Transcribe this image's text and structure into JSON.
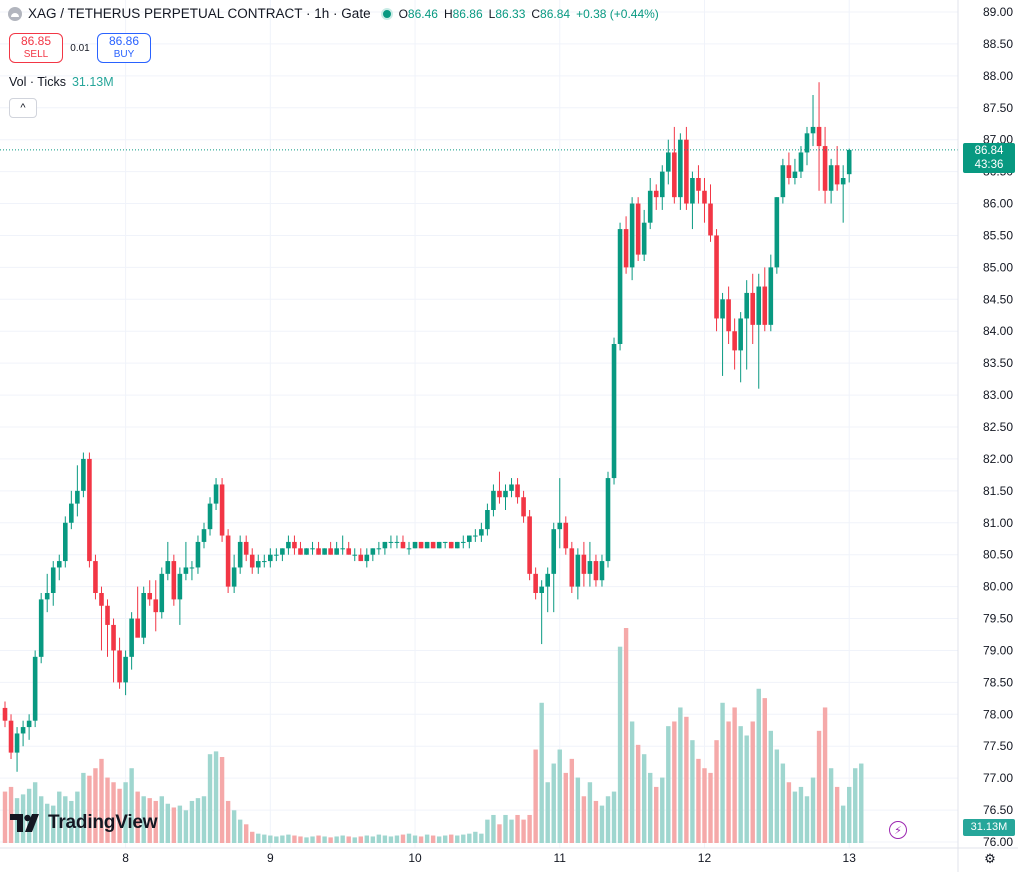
{
  "legend": {
    "symbol": "XAG / TETHERUS PERPETUAL CONTRACT · 1h · Gate",
    "o_label": "O",
    "o": "86.46",
    "h_label": "H",
    "h": "86.86",
    "l_label": "L",
    "l": "86.33",
    "c_label": "C",
    "c": "86.84",
    "change": "+0.38 (+0.44%)"
  },
  "trade": {
    "sell_price": "86.85",
    "sell_label": "SELL",
    "spread": "0.01",
    "buy_price": "86.86",
    "buy_label": "BUY"
  },
  "volume": {
    "label": "Vol · Ticks",
    "value": "31.13M"
  },
  "collapse_glyph": "^",
  "brand": {
    "name": "TradingView"
  },
  "price_tag": {
    "price": "86.84",
    "countdown": "43:36"
  },
  "volume_tag": "31.13M",
  "colors": {
    "up": "#089981",
    "down": "#f23645",
    "vol_up": "#9fd6cf",
    "vol_down": "#f5a9a9"
  },
  "chart_data": {
    "type": "candlestick",
    "interval": "1h",
    "y_ticks": [
      "89.00",
      "88.50",
      "88.00",
      "87.50",
      "87.00",
      "86.50",
      "86.00",
      "85.50",
      "85.00",
      "84.50",
      "84.00",
      "83.50",
      "83.00",
      "82.50",
      "82.00",
      "81.50",
      "81.00",
      "80.50",
      "80.00",
      "79.50",
      "79.00",
      "78.50",
      "78.00",
      "77.50",
      "77.00",
      "76.50",
      "76.00"
    ],
    "ylim": [
      76.0,
      89.0
    ],
    "x_ticks": [
      {
        "label": "8",
        "index": 20
      },
      {
        "label": "9",
        "index": 44
      },
      {
        "label": "10",
        "index": 68
      },
      {
        "label": "11",
        "index": 92
      },
      {
        "label": "12",
        "index": 116
      },
      {
        "label": "13",
        "index": 140
      }
    ],
    "current_price": 86.84,
    "ohlc": [
      [
        78.1,
        78.2,
        77.8,
        77.9
      ],
      [
        77.9,
        78.0,
        77.3,
        77.4
      ],
      [
        77.4,
        77.8,
        77.1,
        77.7
      ],
      [
        77.7,
        77.9,
        77.5,
        77.8
      ],
      [
        77.8,
        78.0,
        77.6,
        77.9
      ],
      [
        77.9,
        79.0,
        77.8,
        78.9
      ],
      [
        78.9,
        79.9,
        78.8,
        79.8
      ],
      [
        79.8,
        80.2,
        79.6,
        79.9
      ],
      [
        79.9,
        80.4,
        79.7,
        80.3
      ],
      [
        80.3,
        80.5,
        80.1,
        80.4
      ],
      [
        80.4,
        81.1,
        80.3,
        81.0
      ],
      [
        81.0,
        81.5,
        80.9,
        81.3
      ],
      [
        81.3,
        81.9,
        81.1,
        81.5
      ],
      [
        81.5,
        82.1,
        81.4,
        82.0
      ],
      [
        82.0,
        82.1,
        80.3,
        80.4
      ],
      [
        80.4,
        80.5,
        79.8,
        79.9
      ],
      [
        79.9,
        80.0,
        79.0,
        79.7
      ],
      [
        79.7,
        79.8,
        78.9,
        79.4
      ],
      [
        79.4,
        79.5,
        78.5,
        79.0
      ],
      [
        79.0,
        79.2,
        78.4,
        78.5
      ],
      [
        78.5,
        79.0,
        78.3,
        78.9
      ],
      [
        78.9,
        79.6,
        78.7,
        79.5
      ],
      [
        79.5,
        80.0,
        79.3,
        79.2
      ],
      [
        79.2,
        80.0,
        79.1,
        79.9
      ],
      [
        79.9,
        80.1,
        79.7,
        79.8
      ],
      [
        79.8,
        80.1,
        79.3,
        79.6
      ],
      [
        79.6,
        80.3,
        79.5,
        80.2
      ],
      [
        80.2,
        80.7,
        80.1,
        80.4
      ],
      [
        80.4,
        80.5,
        79.7,
        79.8
      ],
      [
        79.8,
        80.3,
        79.4,
        80.2
      ],
      [
        80.2,
        80.7,
        80.1,
        80.3
      ],
      [
        80.3,
        80.4,
        80.1,
        80.3
      ],
      [
        80.3,
        80.8,
        80.2,
        80.7
      ],
      [
        80.7,
        81.0,
        80.6,
        80.9
      ],
      [
        80.9,
        81.4,
        80.8,
        81.3
      ],
      [
        81.3,
        81.7,
        81.2,
        81.6
      ],
      [
        81.6,
        81.7,
        80.7,
        80.8
      ],
      [
        80.8,
        80.9,
        79.9,
        80.0
      ],
      [
        80.0,
        80.5,
        79.9,
        80.3
      ],
      [
        80.3,
        80.8,
        80.2,
        80.7
      ],
      [
        80.7,
        80.8,
        80.4,
        80.5
      ],
      [
        80.5,
        80.6,
        80.2,
        80.3
      ],
      [
        80.3,
        80.5,
        80.2,
        80.4
      ],
      [
        80.4,
        80.5,
        80.3,
        80.4
      ],
      [
        80.4,
        80.6,
        80.3,
        80.5
      ],
      [
        80.5,
        80.6,
        80.4,
        80.5
      ],
      [
        80.5,
        80.6,
        80.4,
        80.6
      ],
      [
        80.6,
        80.8,
        80.5,
        80.7
      ],
      [
        80.7,
        80.8,
        80.5,
        80.6
      ],
      [
        80.6,
        80.7,
        80.5,
        80.5
      ],
      [
        80.5,
        80.6,
        80.5,
        80.6
      ],
      [
        80.6,
        80.7,
        80.5,
        80.6
      ],
      [
        80.6,
        80.7,
        80.5,
        80.5
      ],
      [
        80.5,
        80.6,
        80.5,
        80.6
      ],
      [
        80.6,
        80.7,
        80.5,
        80.5
      ],
      [
        80.5,
        80.7,
        80.5,
        80.6
      ],
      [
        80.6,
        80.8,
        80.5,
        80.6
      ],
      [
        80.6,
        80.7,
        80.5,
        80.5
      ],
      [
        80.5,
        80.6,
        80.4,
        80.5
      ],
      [
        80.5,
        80.6,
        80.4,
        80.4
      ],
      [
        80.4,
        80.6,
        80.3,
        80.5
      ],
      [
        80.5,
        80.6,
        80.4,
        80.6
      ],
      [
        80.6,
        80.7,
        80.5,
        80.6
      ],
      [
        80.6,
        80.7,
        80.5,
        80.7
      ],
      [
        80.7,
        80.8,
        80.6,
        80.7
      ],
      [
        80.7,
        80.8,
        80.6,
        80.7
      ],
      [
        80.7,
        80.8,
        80.6,
        80.6
      ],
      [
        80.6,
        80.7,
        80.5,
        80.6
      ],
      [
        80.6,
        80.7,
        80.6,
        80.7
      ],
      [
        80.7,
        80.7,
        80.6,
        80.6
      ],
      [
        80.6,
        80.7,
        80.6,
        80.7
      ],
      [
        80.7,
        80.7,
        80.6,
        80.6
      ],
      [
        80.6,
        80.7,
        80.6,
        80.7
      ],
      [
        80.7,
        80.7,
        80.6,
        80.7
      ],
      [
        80.7,
        80.7,
        80.6,
        80.6
      ],
      [
        80.6,
        80.7,
        80.6,
        80.7
      ],
      [
        80.7,
        80.8,
        80.6,
        80.7
      ],
      [
        80.7,
        80.8,
        80.6,
        80.8
      ],
      [
        80.8,
        80.9,
        80.7,
        80.8
      ],
      [
        80.8,
        81.0,
        80.7,
        80.9
      ],
      [
        80.9,
        81.3,
        80.8,
        81.2
      ],
      [
        81.2,
        81.6,
        81.1,
        81.5
      ],
      [
        81.5,
        81.8,
        81.3,
        81.4
      ],
      [
        81.4,
        81.6,
        81.2,
        81.5
      ],
      [
        81.5,
        81.7,
        81.4,
        81.6
      ],
      [
        81.6,
        81.7,
        81.3,
        81.4
      ],
      [
        81.4,
        81.5,
        81.0,
        81.1
      ],
      [
        81.1,
        81.2,
        80.1,
        80.2
      ],
      [
        80.2,
        80.3,
        79.8,
        79.9
      ],
      [
        79.9,
        80.1,
        79.1,
        80.0
      ],
      [
        80.0,
        80.3,
        79.6,
        80.2
      ],
      [
        80.2,
        81.0,
        79.6,
        80.9
      ],
      [
        80.9,
        81.7,
        80.6,
        81.0
      ],
      [
        81.0,
        81.1,
        80.5,
        80.6
      ],
      [
        80.6,
        80.7,
        79.9,
        80.0
      ],
      [
        80.0,
        80.6,
        79.8,
        80.5
      ],
      [
        80.5,
        80.7,
        80.0,
        80.2
      ],
      [
        80.2,
        80.7,
        80.0,
        80.4
      ],
      [
        80.4,
        80.5,
        80.0,
        80.1
      ],
      [
        80.1,
        80.5,
        80.0,
        80.4
      ],
      [
        80.4,
        81.8,
        80.3,
        81.7
      ],
      [
        81.7,
        83.9,
        81.6,
        83.8
      ],
      [
        83.8,
        85.7,
        83.7,
        85.6
      ],
      [
        85.6,
        85.8,
        84.9,
        85.0
      ],
      [
        85.0,
        86.1,
        84.8,
        86.0
      ],
      [
        86.0,
        86.1,
        85.1,
        85.2
      ],
      [
        85.2,
        85.9,
        85.1,
        85.7
      ],
      [
        85.7,
        86.4,
        85.6,
        86.2
      ],
      [
        86.2,
        86.3,
        85.9,
        86.1
      ],
      [
        86.1,
        86.6,
        85.9,
        86.5
      ],
      [
        86.5,
        87.0,
        86.3,
        86.8
      ],
      [
        86.8,
        87.2,
        86.0,
        86.1
      ],
      [
        86.1,
        87.1,
        85.9,
        87.0
      ],
      [
        87.0,
        87.2,
        85.9,
        86.0
      ],
      [
        86.0,
        86.5,
        85.6,
        86.4
      ],
      [
        86.4,
        86.6,
        86.0,
        86.2
      ],
      [
        86.2,
        86.4,
        85.7,
        86.0
      ],
      [
        86.0,
        86.3,
        85.4,
        85.5
      ],
      [
        85.5,
        85.6,
        84.0,
        84.2
      ],
      [
        84.2,
        84.6,
        83.3,
        84.5
      ],
      [
        84.5,
        84.7,
        83.8,
        84.0
      ],
      [
        84.0,
        84.2,
        83.4,
        83.7
      ],
      [
        83.7,
        84.3,
        83.2,
        84.2
      ],
      [
        84.2,
        84.8,
        83.4,
        84.6
      ],
      [
        84.6,
        84.9,
        83.8,
        84.1
      ],
      [
        84.1,
        84.9,
        83.1,
        84.7
      ],
      [
        84.7,
        85.0,
        84.0,
        84.1
      ],
      [
        84.1,
        85.2,
        84.0,
        85.0
      ],
      [
        85.0,
        86.1,
        84.9,
        86.1
      ],
      [
        86.1,
        86.7,
        86.0,
        86.6
      ],
      [
        86.6,
        86.8,
        86.3,
        86.4
      ],
      [
        86.4,
        86.7,
        86.3,
        86.5
      ],
      [
        86.5,
        86.9,
        86.4,
        86.8
      ],
      [
        86.8,
        87.2,
        86.6,
        87.1
      ],
      [
        87.1,
        87.7,
        86.9,
        87.2
      ],
      [
        87.2,
        87.9,
        86.2,
        86.9
      ],
      [
        86.9,
        87.2,
        86.0,
        86.2
      ],
      [
        86.2,
        86.7,
        86.0,
        86.6
      ],
      [
        86.6,
        86.9,
        86.2,
        86.3
      ],
      [
        86.3,
        86.6,
        85.7,
        86.4
      ],
      [
        86.46,
        86.86,
        86.33,
        86.84
      ]
    ],
    "volume": [
      5.5,
      6.0,
      4.8,
      5.2,
      5.8,
      6.5,
      5.0,
      4.2,
      4.0,
      5.5,
      5.0,
      4.5,
      5.5,
      7.5,
      7.2,
      8.0,
      9.0,
      7.0,
      6.5,
      5.8,
      6.5,
      8.0,
      5.5,
      5.0,
      4.8,
      4.5,
      5.0,
      4.2,
      3.8,
      4.0,
      3.5,
      4.5,
      4.8,
      5.0,
      9.5,
      9.8,
      9.2,
      4.5,
      3.5,
      2.5,
      2.0,
      1.2,
      1.0,
      0.9,
      0.8,
      0.7,
      0.8,
      0.9,
      0.8,
      0.7,
      0.6,
      0.7,
      0.8,
      0.7,
      0.6,
      0.7,
      0.8,
      0.7,
      0.6,
      0.7,
      0.8,
      0.7,
      0.9,
      0.8,
      0.7,
      0.8,
      0.9,
      1.0,
      0.8,
      0.7,
      0.9,
      0.8,
      0.7,
      0.8,
      0.9,
      0.8,
      0.9,
      1.0,
      1.2,
      1.0,
      2.5,
      3.0,
      2.0,
      3.0,
      2.5,
      3.0,
      2.5,
      3.0,
      10.0,
      15.0,
      6.5,
      8.5,
      10.0,
      7.5,
      9.0,
      7.0,
      5.0,
      6.5,
      4.5,
      4.0,
      5.0,
      5.5,
      21.0,
      23.0,
      13.0,
      10.5,
      9.5,
      7.5,
      6.0,
      7.0,
      12.5,
      13.0,
      14.5,
      13.5,
      11.0,
      9.0,
      8.0,
      7.5,
      11.0,
      15.0,
      13.0,
      14.5,
      12.5,
      11.5,
      13.0,
      16.5,
      15.5,
      12.0,
      10.0,
      8.5,
      6.5,
      5.5,
      6.0,
      5.0,
      7.0,
      12.0,
      14.5,
      8.0,
      6.0,
      4.0,
      6.0,
      8.0,
      8.5
    ]
  }
}
